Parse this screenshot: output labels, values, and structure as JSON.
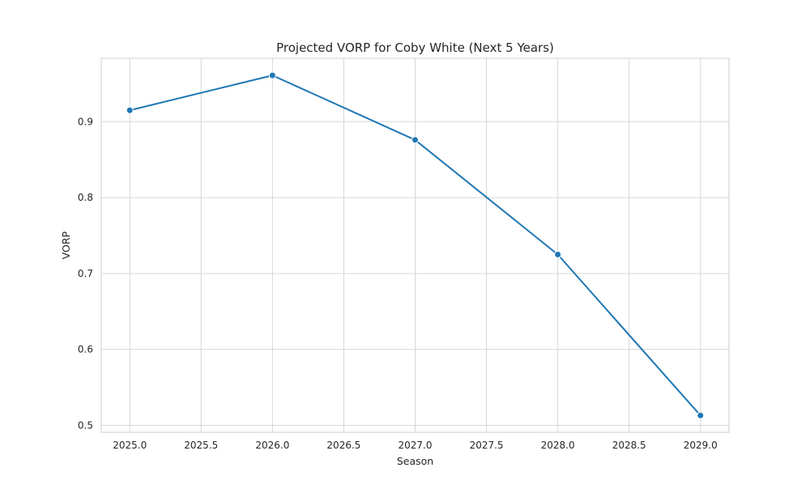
{
  "chart_data": {
    "type": "line",
    "title": "Projected VORP for Coby White (Next 5 Years)",
    "xlabel": "Season",
    "ylabel": "VORP",
    "xlim": [
      2024.8,
      2029.2
    ],
    "ylim": [
      0.4908,
      0.9835
    ],
    "x_ticks": [
      2025.0,
      2025.5,
      2026.0,
      2026.5,
      2027.0,
      2027.5,
      2028.0,
      2028.5,
      2029.0
    ],
    "x_tick_labels": [
      "2025.0",
      "2025.5",
      "2026.0",
      "2026.5",
      "2027.0",
      "2027.5",
      "2028.0",
      "2028.5",
      "2029.0"
    ],
    "y_ticks": [
      0.5,
      0.6,
      0.7,
      0.8,
      0.9
    ],
    "y_tick_labels": [
      "0.5",
      "0.6",
      "0.7",
      "0.8",
      "0.9"
    ],
    "grid": true,
    "series": [
      {
        "x": [
          2025,
          2026,
          2027,
          2028,
          2029
        ],
        "y": [
          0.915,
          0.961,
          0.876,
          0.725,
          0.513
        ],
        "color": "#1f77b4",
        "marker": "circle"
      }
    ]
  }
}
